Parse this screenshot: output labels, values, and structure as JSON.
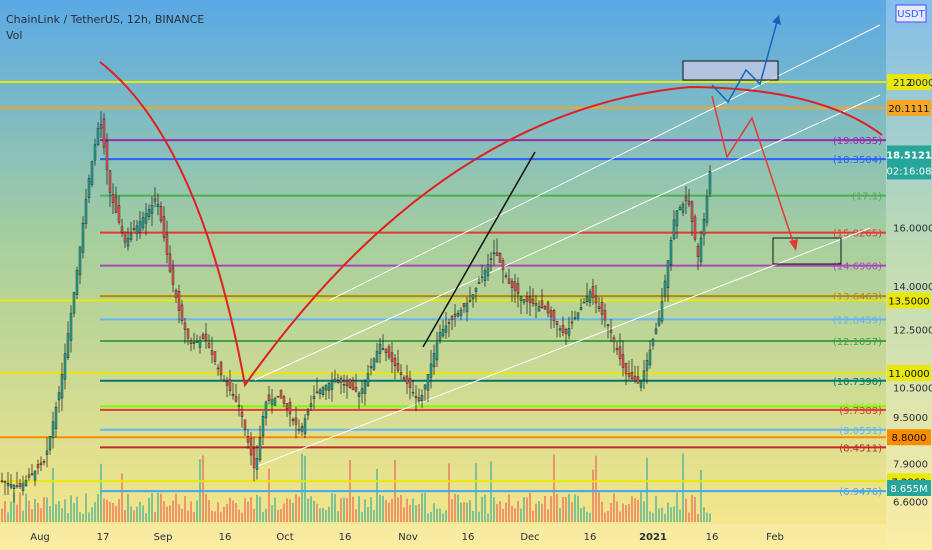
{
  "header": {
    "symbol": "ChainLink / TetherUS, 12h, BINANCE",
    "volume_label": "Vol"
  },
  "currency_badge": "USDT",
  "chart_data": {
    "type": "candlestick",
    "ylim": [
      6.3,
      23.2
    ],
    "x_ticks": [
      "Aug",
      "17",
      "Sep",
      "16",
      "Oct",
      "16",
      "Nov",
      "16",
      "Dec",
      "16",
      "2021",
      "16",
      "Feb"
    ],
    "price_axis_ticks": [
      "21.0000",
      "16.0000",
      "14.0000",
      "12.5000",
      "10.5000",
      "9.5000",
      "7.9000",
      "6.6000"
    ],
    "horizontal_levels": [
      {
        "value": 21.0,
        "label": "2",
        "color": "#e8e80a",
        "boxed": true
      },
      {
        "value": 20.1111,
        "label": "20.1111",
        "color": "#f5a623",
        "boxed": true
      },
      {
        "value": 19.0035,
        "label": "(19.0035)",
        "color": "#9c27b0"
      },
      {
        "value": 18.3504,
        "label": "(18.3504)",
        "color": "#2962ff"
      },
      {
        "value": 17.1,
        "label": "(17.1)",
        "color": "#4caf50"
      },
      {
        "value": 15.8265,
        "label": "(15.8265)",
        "color": "#e53935"
      },
      {
        "value": 14.696,
        "label": "(14.6960)",
        "color": "#ab47bc"
      },
      {
        "value": 13.6463,
        "label": "(13.6463)",
        "color": "#b8860b"
      },
      {
        "value": 13.5,
        "label": "13.5000",
        "color": "#e8e80a",
        "boxed": true
      },
      {
        "value": 12.8459,
        "label": "(12.8459)",
        "color": "#64b5f6"
      },
      {
        "value": 12.1057,
        "label": "(12.1057)",
        "color": "#43a047"
      },
      {
        "value": 11.0,
        "label": "11.0000",
        "color": "#e8e80a",
        "boxed": true
      },
      {
        "value": 10.739,
        "label": "(10.7390)",
        "color": "#00796b"
      },
      {
        "value": 9.8603,
        "label": "(9.8603)",
        "color": "#76ff03"
      },
      {
        "value": 9.7389,
        "label": "(9.7389)",
        "color": "#e53935"
      },
      {
        "value": 9.0551,
        "label": "(9.0551)",
        "color": "#64b5f6"
      },
      {
        "value": 8.8,
        "label": "8.8000",
        "color": "#fb8c00",
        "boxed": true
      },
      {
        "value": 8.4511,
        "label": "(8.4511)",
        "color": "#c62828"
      },
      {
        "value": 7.2869,
        "label": "7.2869",
        "color": "#e8e80a",
        "boxed": true
      },
      {
        "value": 6.9476,
        "label": "(6.9476)",
        "color": "#42a5f5"
      }
    ],
    "last_price": "18.5121",
    "countdown": "02:16:08",
    "volume_last": "8.655M",
    "colors": {
      "up": "#26a69a",
      "down": "#ef5350",
      "arc": "#e02020",
      "projection_up": "#1565c0",
      "projection_down": "#e53935"
    }
  }
}
